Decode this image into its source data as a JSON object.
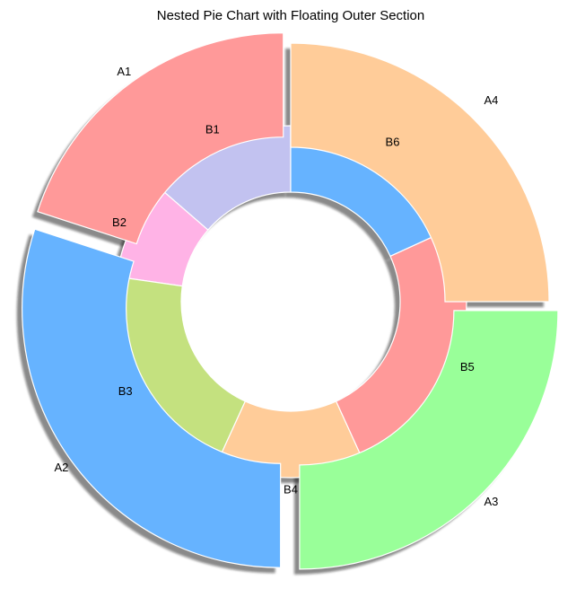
{
  "chart_data": {
    "type": "pie",
    "variant": "nested-donut",
    "title": "Nested Pie Chart with Floating Outer Section",
    "start_angle_deg": 90,
    "direction": "counterclockwise",
    "shadow": true,
    "outer_ring": {
      "categories": [
        "A1",
        "A2",
        "A3",
        "A4"
      ],
      "values": [
        20,
        30,
        25,
        25
      ],
      "colors": [
        "#ff9999",
        "#66b3ff",
        "#99ff99",
        "#ffcc99"
      ],
      "exploded": [
        "A1",
        "A2",
        "A3"
      ]
    },
    "inner_ring": {
      "categories": [
        "B1",
        "B2",
        "B3",
        "B4",
        "B5",
        "B6"
      ],
      "values": [
        12,
        8,
        18,
        12,
        22,
        16
      ],
      "colors": [
        "#c2c2f0",
        "#ffb3e6",
        "#c4e17f",
        "#ffcc99",
        "#ff9999",
        "#66b3ff"
      ]
    }
  }
}
